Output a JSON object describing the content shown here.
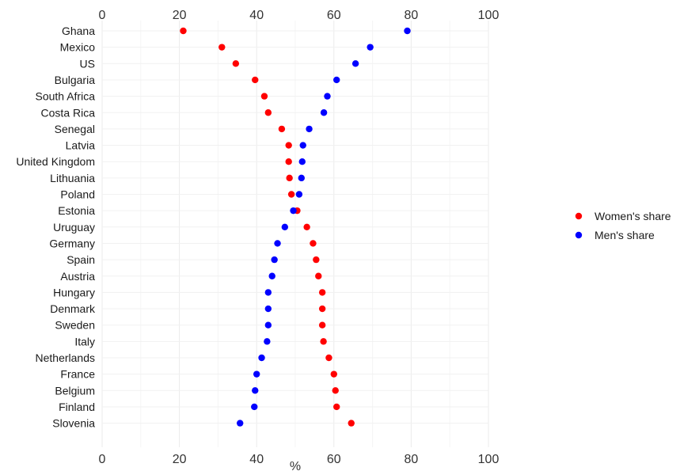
{
  "chart_data": {
    "type": "scatter",
    "orientation": "horizontal-dot",
    "title": "",
    "xlabel": "%",
    "ylabel": "",
    "xlim": [
      0,
      100
    ],
    "xticks": [
      "0",
      "20",
      "40",
      "60",
      "80",
      "100"
    ],
    "x_axis_position": "top-and-bottom",
    "grid": true,
    "legend_position": "right",
    "categories": [
      "Ghana",
      "Mexico",
      "US",
      "Bulgaria",
      "South Africa",
      "Costa Rica",
      "Senegal",
      "Latvia",
      "United Kingdom",
      "Lithuania",
      "Poland",
      "Estonia",
      "Uruguay",
      "Germany",
      "Spain",
      "Austria",
      "Hungary",
      "Denmark",
      "Sweden",
      "Italy",
      "Netherlands",
      "France",
      "Belgium",
      "Finland",
      "Slovenia"
    ],
    "series": [
      {
        "name": "Women's share",
        "color": "#ff0000",
        "values": [
          21,
          31,
          34.6,
          39.6,
          42,
          43,
          46.5,
          48.3,
          48.3,
          48.5,
          49,
          50.5,
          53,
          54.6,
          55.4,
          56,
          57,
          57,
          57,
          57.3,
          58.7,
          60,
          60.4,
          60.7,
          64.5
        ]
      },
      {
        "name": "Men's share",
        "color": "#0000ff",
        "values": [
          79,
          69.4,
          65.6,
          60.7,
          58.3,
          57.4,
          53.6,
          52,
          51.8,
          51.6,
          51,
          49.5,
          47.3,
          45.4,
          44.6,
          44,
          43,
          43,
          43,
          42.7,
          41.3,
          40,
          39.6,
          39.4,
          35.7
        ]
      }
    ]
  }
}
